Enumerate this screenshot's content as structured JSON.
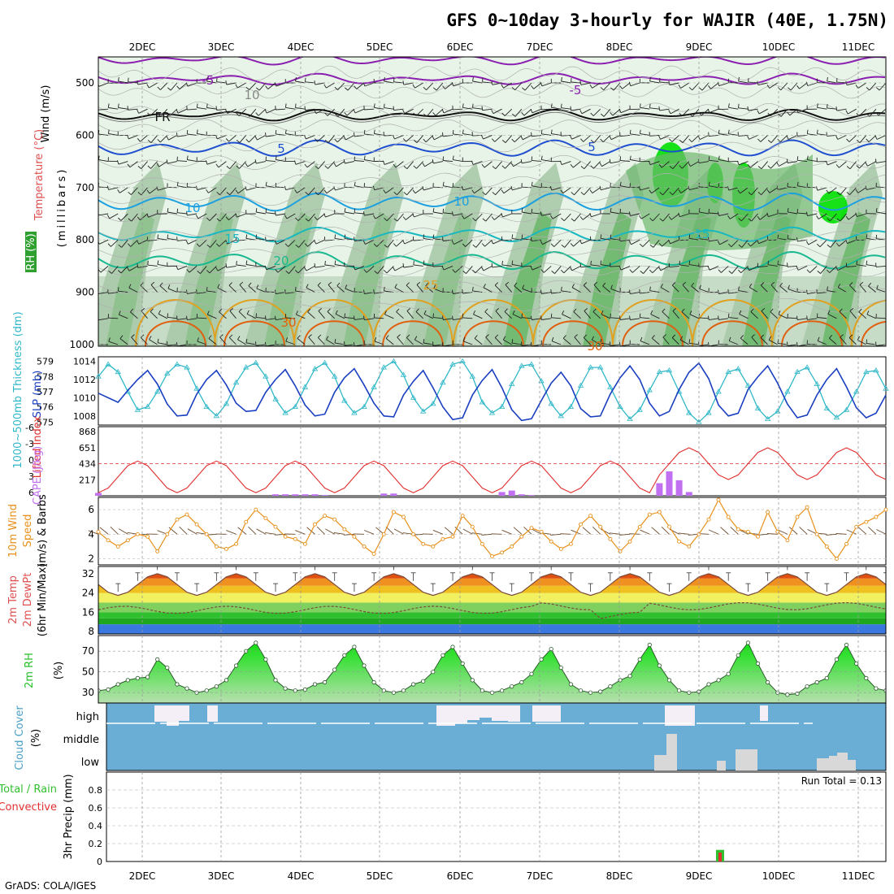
{
  "title": "GFS 0~10day 3-hourly for WAJIR (40E, 1.75N)",
  "credit": "GrADS: COLA/IGES",
  "dates": [
    "2DEC",
    "3DEC",
    "4DEC",
    "5DEC",
    "6DEC",
    "7DEC",
    "8DEC",
    "9DEC",
    "10DEC",
    "11DEC"
  ],
  "colors": {
    "rh_light": "#e8f4e8",
    "rh_mid": "#a9c9a9",
    "rh_dark": "#6db86d",
    "rh_vivid": "#00e000",
    "temp_neg": "#8a1fb0",
    "temp_fr": "#111111",
    "temp_5": "#1f4fd0",
    "temp_10": "#1ca0e0",
    "temp_15": "#18b8c0",
    "temp_20": "#18b890",
    "temp_25": "#e0a020",
    "temp_30": "#e06010",
    "slp": "#1a3fc0",
    "thickness": "#30b8c8",
    "cape": "#c070f0",
    "lifted_index": "#e03030",
    "wind10m": "#e8901a",
    "rh2m": "#28c028",
    "cloud": "#6aaed6",
    "precip_total": "#30c030",
    "precip_conv": "#e03030"
  },
  "panels": {
    "upper_air": {
      "ylabel_wind": "Wind (m/s)",
      "ylabel_temp": "Temperature (°C)",
      "ylabel_rh": "RH (%)",
      "ylabel_mb": "(millibars)",
      "y_ticks": [
        "500",
        "600",
        "700",
        "800",
        "900",
        "1000"
      ],
      "contour_labels": [
        "-5",
        "-5",
        "10",
        "FR",
        "5",
        "5",
        "10",
        "10",
        "15",
        "15",
        "20",
        "25",
        "30",
        "30"
      ]
    },
    "slp_thickness": {
      "ylabel_thickness": "1000~500mb Thickness (dm)",
      "ylabel_slp": "SLP (mb)",
      "thickness_ticks": [
        "579",
        "578",
        "577",
        "576",
        "575"
      ],
      "slp_ticks": [
        "1014",
        "1012",
        "1010",
        "1008"
      ]
    },
    "cape_li": {
      "ylabel_li": "Lifted Index",
      "ylabel_cape": "CAPE (J/kg)",
      "li_ticks": [
        "-6",
        "-3",
        "0",
        "3",
        "6"
      ],
      "cape_ticks": [
        "868",
        "651",
        "434",
        "217"
      ]
    },
    "wind10m": {
      "ylabel": "10m Wind Speed (m/s) & Barbs",
      "ylabel_parts": [
        "10m Wind",
        "Speed",
        "(m/s) & Barbs"
      ],
      "y_ticks": [
        "2",
        "4",
        "6"
      ]
    },
    "temp2m": {
      "ylabel_parts": [
        "2m Temp",
        "2m DewPt",
        "(6hr Min/Max)"
      ],
      "y_ticks": [
        "8",
        "16",
        "24",
        "32"
      ]
    },
    "rh2m": {
      "ylabel": "2m RH",
      "unit": "(%)",
      "y_ticks": [
        "30",
        "50",
        "70"
      ]
    },
    "cloud": {
      "ylabel": "Cloud Cover",
      "unit": "(%)",
      "levels": [
        "high",
        "middle",
        "low"
      ]
    },
    "precip": {
      "ylabel_total": "Total / Rain",
      "ylabel_conv": "Convective",
      "ylabel_axis": "3hr Precip (mm)",
      "y_ticks": [
        "0",
        "0.2",
        "0.4",
        "0.6",
        "0.8"
      ],
      "run_total": "Run Total = 0.13"
    }
  },
  "chart_data": [
    {
      "type": "line",
      "name": "SLP (mb)",
      "x_unit": "3-hourly steps from 1DEC 15Z",
      "x": [
        0,
        1,
        2,
        3,
        4,
        5,
        6,
        7,
        8,
        9,
        10,
        11,
        12,
        13,
        14,
        15,
        16,
        17,
        18,
        19,
        20,
        21,
        22,
        23,
        24,
        25,
        26,
        27,
        28,
        29,
        30,
        31,
        32,
        33,
        34,
        35,
        36,
        37,
        38,
        39,
        40,
        41,
        42,
        43,
        44,
        45,
        46,
        47,
        48,
        49,
        50,
        51,
        52,
        53,
        54,
        55,
        56,
        57,
        58,
        59,
        60,
        61,
        62,
        63,
        64,
        65,
        66,
        67,
        68,
        69,
        70,
        71,
        72,
        73,
        74,
        75,
        76,
        77,
        78,
        79,
        80
      ],
      "values": [
        1010.5,
        1010.0,
        1009.5,
        1010.8,
        1012.0,
        1013.0,
        1011.5,
        1009.3,
        1008.0,
        1008.1,
        1010.4,
        1012.0,
        1013.0,
        1011.4,
        1009.4,
        1008.5,
        1008.6,
        1010.6,
        1012.0,
        1013.1,
        1011.3,
        1009.2,
        1008.0,
        1008.2,
        1010.6,
        1012.2,
        1013.2,
        1011.4,
        1009.4,
        1008.0,
        1007.9,
        1010.3,
        1011.8,
        1013.0,
        1011.1,
        1009.0,
        1007.6,
        1007.8,
        1010.3,
        1011.9,
        1013.1,
        1011.1,
        1008.7,
        1007.5,
        1007.7,
        1009.7,
        1011.6,
        1012.8,
        1011.3,
        1008.8,
        1007.9,
        1008.0,
        1010.4,
        1012.2,
        1013.5,
        1012.0,
        1009.4,
        1008.0,
        1008.5,
        1010.9,
        1012.8,
        1013.8,
        1012.1,
        1009.2,
        1008.0,
        1008.3,
        1010.9,
        1012.3,
        1013.5,
        1011.6,
        1009.3,
        1007.8,
        1008.1,
        1010.3,
        1012.0,
        1013.2,
        1011.2,
        1008.9,
        1007.8,
        1008.3,
        1010.3
      ],
      "ylim": [
        1007,
        1014.5
      ]
    },
    {
      "type": "line",
      "name": "1000~500mb Thickness (dm)",
      "x": [
        0,
        1,
        2,
        3,
        4,
        5,
        6,
        7,
        8,
        9,
        10,
        11,
        12,
        13,
        14,
        15,
        16,
        17,
        18,
        19,
        20,
        21,
        22,
        23,
        24,
        25,
        26,
        27,
        28,
        29,
        30,
        31,
        32,
        33,
        34,
        35,
        36,
        37,
        38,
        39,
        40,
        41,
        42,
        43,
        44,
        45,
        46,
        47,
        48,
        49,
        50,
        51,
        52,
        53,
        54,
        55,
        56,
        57,
        58,
        59,
        60,
        61,
        62,
        63,
        64,
        65,
        66,
        67,
        68,
        69,
        70,
        71,
        72,
        73,
        74,
        75,
        76,
        77,
        78,
        79,
        80
      ],
      "values": [
        578.0,
        578.8,
        578.3,
        577.0,
        575.8,
        576.0,
        577.0,
        578.2,
        578.8,
        578.6,
        577.2,
        576.0,
        575.4,
        576.2,
        577.6,
        578.6,
        578.9,
        578.0,
        576.5,
        575.6,
        576.0,
        577.3,
        578.5,
        578.9,
        578.0,
        576.4,
        575.6,
        576.0,
        577.3,
        578.6,
        579.0,
        578.1,
        576.6,
        575.7,
        576.2,
        577.6,
        578.8,
        579.0,
        578.0,
        576.3,
        575.6,
        576.0,
        577.5,
        578.7,
        578.8,
        577.7,
        576.2,
        575.4,
        576.0,
        577.4,
        578.6,
        578.6,
        577.3,
        576.0,
        575.2,
        575.8,
        577.1,
        578.3,
        578.4,
        577.0,
        575.6,
        575.0,
        575.6,
        577.0,
        578.3,
        578.5,
        577.4,
        575.9,
        575.2,
        575.7,
        577.0,
        578.3,
        578.6,
        577.5,
        575.9,
        575.3,
        575.8,
        577.0,
        578.3,
        578.4,
        577.2
      ],
      "ylim": [
        574.8,
        579.3
      ]
    },
    {
      "type": "bar",
      "name": "CAPE (J/kg)",
      "x": [
        0,
        1,
        2,
        3,
        4,
        5,
        6,
        7,
        8,
        9,
        10,
        11,
        12,
        13,
        14,
        15,
        16,
        17,
        18,
        19,
        20,
        21,
        22,
        23,
        24,
        25,
        26,
        27,
        28,
        29,
        30,
        31,
        32,
        33,
        34,
        35,
        36,
        37,
        38,
        39,
        40,
        41,
        42,
        43,
        44,
        45,
        46,
        47,
        48,
        49,
        50,
        51,
        52,
        53,
        54,
        55,
        56,
        57,
        58,
        59,
        60,
        61,
        62,
        63,
        64,
        65,
        66,
        67,
        68,
        69,
        70,
        71,
        72,
        73,
        74,
        75,
        76,
        77,
        78,
        79,
        80
      ],
      "values": [
        40,
        0,
        0,
        0,
        0,
        0,
        0,
        0,
        0,
        0,
        0,
        0,
        0,
        0,
        0,
        0,
        0,
        0,
        20,
        20,
        20,
        20,
        20,
        10,
        0,
        0,
        0,
        0,
        0,
        30,
        30,
        0,
        0,
        0,
        0,
        0,
        0,
        0,
        0,
        0,
        0,
        50,
        70,
        20,
        10,
        0,
        0,
        0,
        0,
        0,
        0,
        0,
        0,
        0,
        0,
        0,
        0,
        170,
        330,
        210,
        50,
        0,
        0,
        0,
        0,
        0,
        0,
        0,
        0,
        0,
        0,
        0,
        0,
        0,
        0,
        0,
        0,
        0,
        0,
        0,
        0
      ],
      "ylim": [
        0,
        868
      ]
    },
    {
      "type": "line",
      "name": "10m Wind Speed (m/s)",
      "x": [
        0,
        1,
        2,
        3,
        4,
        5,
        6,
        7,
        8,
        9,
        10,
        11,
        12,
        13,
        14,
        15,
        16,
        17,
        18,
        19,
        20,
        21,
        22,
        23,
        24,
        25,
        26,
        27,
        28,
        29,
        30,
        31,
        32,
        33,
        34,
        35,
        36,
        37,
        38,
        39,
        40,
        41,
        42,
        43,
        44,
        45,
        46,
        47,
        48,
        49,
        50,
        51,
        52,
        53,
        54,
        55,
        56,
        57,
        58,
        59,
        60,
        61,
        62,
        63,
        64,
        65,
        66,
        67,
        68,
        69,
        70,
        71,
        72,
        73,
        74,
        75,
        76,
        77,
        78,
        79,
        80
      ],
      "values": [
        4.2,
        3.5,
        3.0,
        3.5,
        4.0,
        3.8,
        2.6,
        4.0,
        5.2,
        5.6,
        4.8,
        4.0,
        3.0,
        2.8,
        3.2,
        5.0,
        6.0,
        5.3,
        4.6,
        3.8,
        3.6,
        3.2,
        4.8,
        5.5,
        5.2,
        4.4,
        3.8,
        3.0,
        2.4,
        4.0,
        5.8,
        5.4,
        4.0,
        3.2,
        3.0,
        3.6,
        3.8,
        5.5,
        4.6,
        3.2,
        2.2,
        2.5,
        3.0,
        3.8,
        4.5,
        4.2,
        3.4,
        2.8,
        3.2,
        4.8,
        5.5,
        4.6,
        3.6,
        2.6,
        3.4,
        4.6,
        5.6,
        5.8,
        4.6,
        3.4,
        3.0,
        4.0,
        5.2,
        6.8,
        5.4,
        4.4,
        4.2,
        3.8,
        5.8,
        4.2,
        3.5,
        5.4,
        6.2,
        4.0,
        3.0,
        2.0,
        3.2,
        4.6,
        5.0,
        5.4,
        6.0
      ],
      "ylim": [
        1.5,
        7
      ]
    },
    {
      "type": "line",
      "name": "2m RH (%)",
      "x": [
        0,
        1,
        2,
        3,
        4,
        5,
        6,
        7,
        8,
        9,
        10,
        11,
        12,
        13,
        14,
        15,
        16,
        17,
        18,
        19,
        20,
        21,
        22,
        23,
        24,
        25,
        26,
        27,
        28,
        29,
        30,
        31,
        32,
        33,
        34,
        35,
        36,
        37,
        38,
        39,
        40,
        41,
        42,
        43,
        44,
        45,
        46,
        47,
        48,
        49,
        50,
        51,
        52,
        53,
        54,
        55,
        56,
        57,
        58,
        59,
        60,
        61,
        62,
        63,
        64,
        65,
        66,
        67,
        68,
        69,
        70,
        71,
        72,
        73,
        74,
        75,
        76,
        77,
        78,
        79,
        80
      ],
      "values": [
        32,
        33,
        38,
        42,
        44,
        45,
        62,
        54,
        38,
        34,
        30,
        32,
        36,
        42,
        56,
        70,
        78,
        62,
        42,
        34,
        32,
        33,
        38,
        40,
        52,
        66,
        74,
        56,
        40,
        32,
        30,
        32,
        38,
        41,
        50,
        66,
        74,
        58,
        42,
        32,
        30,
        32,
        36,
        40,
        48,
        62,
        72,
        54,
        38,
        32,
        30,
        31,
        36,
        42,
        46,
        62,
        76,
        56,
        42,
        32,
        30,
        31,
        38,
        42,
        48,
        66,
        78,
        58,
        40,
        30,
        28,
        29,
        36,
        40,
        44,
        62,
        76,
        58,
        44,
        34,
        32
      ],
      "ylim": [
        20,
        85
      ]
    },
    {
      "type": "bar",
      "name": "3hr Precip (mm)",
      "categories": [
        "9DEC 06Z"
      ],
      "series": [
        {
          "name": "Total / Rain",
          "values": [
            0.13
          ]
        },
        {
          "name": "Convective",
          "values": [
            0.1
          ]
        }
      ],
      "ylim": [
        0,
        1
      ]
    }
  ]
}
